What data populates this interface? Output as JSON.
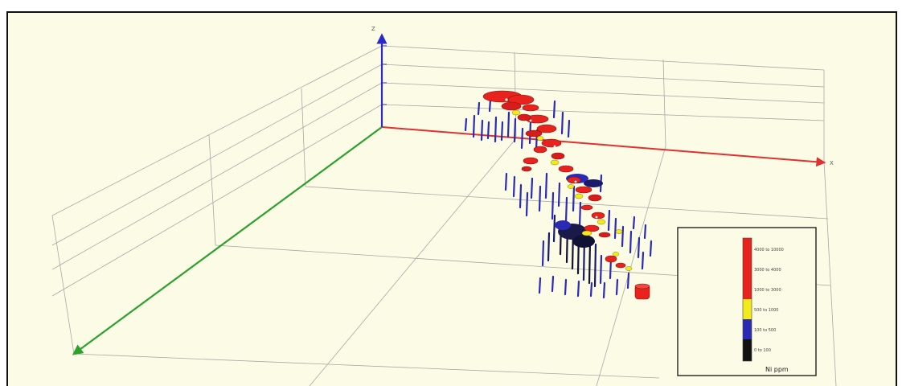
{
  "axes": {
    "x_label": "X",
    "z_label": "Z",
    "x_color": "#e03030",
    "y_color": "#2ea02e",
    "z_color": "#2a2ac8"
  },
  "background_color": "#fbfbe6",
  "legend": {
    "title": "Ni ppm",
    "classes": [
      {
        "label": "4000 to 10000",
        "color": "#e8221c"
      },
      {
        "label": "3000 to 4000",
        "color": "#e8221c"
      },
      {
        "label": "1000 to 3000",
        "color": "#e8221c"
      },
      {
        "label": "500 to 1000",
        "color": "#f2ea1a"
      },
      {
        "label": "100 to 500",
        "color": "#2a2ab4"
      },
      {
        "label": "0 to 100",
        "color": "#111111"
      }
    ]
  }
}
